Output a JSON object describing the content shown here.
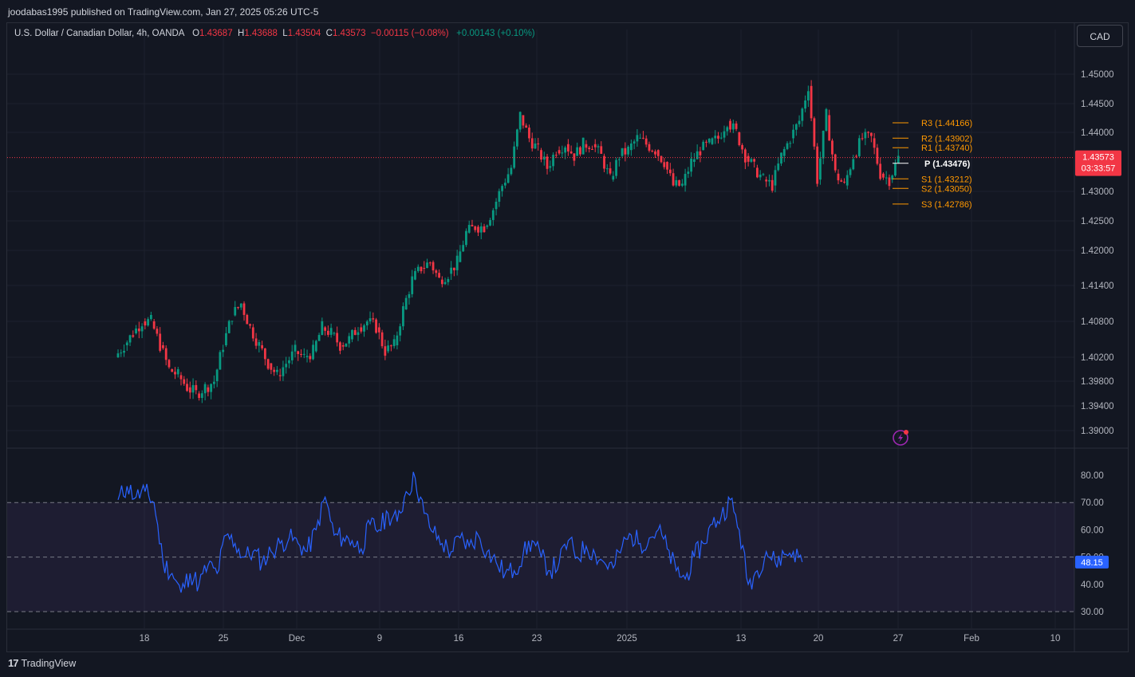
{
  "header": {
    "publisher": "joodabas1995 published on TradingView.com, Jan 27, 2025 05:26 UTC-5"
  },
  "legend": {
    "symbol": "U.S. Dollar / Canadian Dollar, 4h, OANDA",
    "o_label": "O",
    "o_value": "1.43687",
    "h_label": "H",
    "h_value": "1.43688",
    "l_label": "L",
    "l_value": "1.43504",
    "c_label": "C",
    "c_value": "1.43573",
    "change": "−0.00115 (−0.08%)",
    "change2": "+0.00143 (+0.10%)"
  },
  "currency_button": "CAD",
  "footer": {
    "brand": "TradingView"
  },
  "colors": {
    "up": "#089981",
    "down": "#f23645",
    "rsi_line": "#2962ff",
    "pivot": "#ff9800",
    "background": "#131722",
    "grid": "#1e222d"
  },
  "chart_data": [
    {
      "type": "candlestick",
      "symbol": "USDCAD",
      "timeframe": "4h",
      "ylim": [
        1.387,
        1.453
      ],
      "y_ticks": [
        "1.45000",
        "1.44500",
        "1.44000",
        "1.43000",
        "1.42500",
        "1.42000",
        "1.41400",
        "1.40800",
        "1.40200",
        "1.39800",
        "1.39400",
        "1.39000"
      ],
      "y_tick_values": [
        1.45,
        1.445,
        1.44,
        1.43,
        1.425,
        1.42,
        1.414,
        1.408,
        1.402,
        1.398,
        1.394,
        1.39
      ],
      "x_ticks": [
        "18",
        "25",
        "Dec",
        "9",
        "16",
        "23",
        "2025",
        "13",
        "20",
        "27",
        "Feb",
        "10"
      ],
      "last_price": "1.43573",
      "countdown": "03:33:57",
      "pivots": [
        {
          "name": "R3",
          "label": "R3 (1.44166)",
          "value": 1.44166
        },
        {
          "name": "R2",
          "label": "R2 (1.43902)",
          "value": 1.43902
        },
        {
          "name": "R1",
          "label": "R1 (1.43740)",
          "value": 1.4374
        },
        {
          "name": "P",
          "label": "P (1.43476)",
          "value": 1.43476
        },
        {
          "name": "S1",
          "label": "S1 (1.43212)",
          "value": 1.43212
        },
        {
          "name": "S2",
          "label": "S2 (1.43050)",
          "value": 1.4305
        },
        {
          "name": "S3",
          "label": "S3 (1.42786)",
          "value": 1.42786
        }
      ],
      "close_path": [
        [
          14,
          1.402
        ],
        [
          15,
          1.404
        ],
        [
          16,
          1.406
        ],
        [
          17,
          1.408
        ],
        [
          18,
          1.408
        ],
        [
          19,
          1.404
        ],
        [
          20,
          1.4
        ],
        [
          21,
          1.399
        ],
        [
          22,
          1.397
        ],
        [
          23,
          1.396
        ],
        [
          24,
          1.397
        ],
        [
          25,
          1.398
        ],
        [
          26,
          1.404
        ],
        [
          27,
          1.409
        ],
        [
          28,
          1.411
        ],
        [
          29,
          1.407
        ],
        [
          30,
          1.404
        ],
        [
          31,
          1.401
        ],
        [
          32,
          1.399
        ],
        [
          33,
          1.401
        ],
        [
          34,
          1.403
        ],
        [
          35,
          1.402
        ],
        [
          36,
          1.403
        ],
        [
          37,
          1.407
        ],
        [
          38,
          1.406
        ],
        [
          39,
          1.404
        ],
        [
          40,
          1.405
        ],
        [
          41,
          1.407
        ],
        [
          42,
          1.408
        ],
        [
          43,
          1.407
        ],
        [
          44,
          1.403
        ],
        [
          45,
          1.404
        ],
        [
          46,
          1.41
        ],
        [
          47,
          1.415
        ],
        [
          48,
          1.417
        ],
        [
          49,
          1.418
        ],
        [
          50,
          1.415
        ],
        [
          51,
          1.416
        ],
        [
          52,
          1.418
        ],
        [
          53,
          1.423
        ],
        [
          54,
          1.424
        ],
        [
          55,
          1.424
        ],
        [
          56,
          1.427
        ],
        [
          57,
          1.431
        ],
        [
          58,
          1.434
        ],
        [
          59,
          1.443
        ],
        [
          60,
          1.439
        ],
        [
          61,
          1.437
        ],
        [
          62,
          1.434
        ],
        [
          63,
          1.437
        ],
        [
          64,
          1.438
        ],
        [
          65,
          1.436
        ],
        [
          66,
          1.438
        ],
        [
          67,
          1.438
        ],
        [
          68,
          1.436
        ],
        [
          69,
          1.432
        ],
        [
          70,
          1.436
        ],
        [
          71,
          1.437
        ],
        [
          72,
          1.439
        ],
        [
          73,
          1.438
        ],
        [
          74,
          1.437
        ],
        [
          75,
          1.435
        ],
        [
          76,
          1.431
        ],
        [
          77,
          1.431
        ],
        [
          78,
          1.435
        ],
        [
          79,
          1.437
        ],
        [
          80,
          1.438
        ],
        [
          81,
          1.439
        ],
        [
          82,
          1.442
        ],
        [
          83,
          1.44
        ],
        [
          84,
          1.436
        ],
        [
          85,
          1.434
        ],
        [
          86,
          1.432
        ],
        [
          87,
          1.431
        ],
        [
          88,
          1.436
        ],
        [
          89,
          1.439
        ],
        [
          90,
          1.442
        ],
        [
          91,
          1.448
        ],
        [
          92,
          1.432
        ],
        [
          93,
          1.443
        ],
        [
          94,
          1.433
        ],
        [
          95,
          1.431
        ],
        [
          96,
          1.436
        ],
        [
          97,
          1.439
        ],
        [
          98,
          1.439
        ],
        [
          99,
          1.433
        ],
        [
          100,
          1.432
        ],
        [
          101,
          1.4357
        ]
      ],
      "price_label_text": "1.43573"
    },
    {
      "type": "line",
      "name": "RSI",
      "ylim": [
        26,
        88
      ],
      "y_ticks": [
        "80.00",
        "70.00",
        "60.00",
        "50.00",
        "40.00",
        "30.00"
      ],
      "y_tick_values": [
        80,
        70,
        60,
        50,
        40,
        30
      ],
      "band": [
        30,
        70
      ],
      "midline": 50,
      "last_value": "48.15",
      "values_path": [
        [
          14,
          71
        ],
        [
          15,
          76
        ],
        [
          16,
          72
        ],
        [
          17,
          74
        ],
        [
          18,
          70
        ],
        [
          19,
          48
        ],
        [
          20,
          44
        ],
        [
          21,
          37
        ],
        [
          22,
          44
        ],
        [
          23,
          40
        ],
        [
          24,
          47
        ],
        [
          25,
          44
        ],
        [
          26,
          58
        ],
        [
          27,
          55
        ],
        [
          28,
          50
        ],
        [
          29,
          52
        ],
        [
          30,
          48
        ],
        [
          31,
          52
        ],
        [
          32,
          55
        ],
        [
          33,
          57
        ],
        [
          34,
          55
        ],
        [
          35,
          52
        ],
        [
          36,
          60
        ],
        [
          37,
          72
        ],
        [
          38,
          58
        ],
        [
          39,
          57
        ],
        [
          40,
          56
        ],
        [
          41,
          53
        ],
        [
          42,
          62
        ],
        [
          43,
          60
        ],
        [
          44,
          66
        ],
        [
          45,
          63
        ],
        [
          46,
          74
        ],
        [
          47,
          79
        ],
        [
          48,
          66
        ],
        [
          49,
          59
        ],
        [
          50,
          55
        ],
        [
          51,
          52
        ],
        [
          52,
          57
        ],
        [
          53,
          54
        ],
        [
          54,
          58
        ],
        [
          55,
          52
        ],
        [
          56,
          48
        ],
        [
          57,
          44
        ],
        [
          58,
          45
        ],
        [
          59,
          51
        ],
        [
          60,
          56
        ],
        [
          61,
          50
        ],
        [
          62,
          45
        ],
        [
          63,
          48
        ],
        [
          64,
          56
        ],
        [
          65,
          50
        ],
        [
          66,
          54
        ],
        [
          67,
          51
        ],
        [
          68,
          48
        ],
        [
          69,
          46
        ],
        [
          70,
          54
        ],
        [
          71,
          58
        ],
        [
          72,
          55
        ],
        [
          73,
          57
        ],
        [
          74,
          60
        ],
        [
          75,
          53
        ],
        [
          76,
          45
        ],
        [
          77,
          42
        ],
        [
          78,
          50
        ],
        [
          79,
          55
        ],
        [
          80,
          62
        ],
        [
          81,
          65
        ],
        [
          82,
          71
        ],
        [
          83,
          60
        ],
        [
          84,
          40
        ],
        [
          85,
          45
        ],
        [
          86,
          52
        ],
        [
          87,
          48
        ],
        [
          88,
          51
        ],
        [
          89,
          52
        ],
        [
          90,
          48.15
        ]
      ]
    }
  ]
}
